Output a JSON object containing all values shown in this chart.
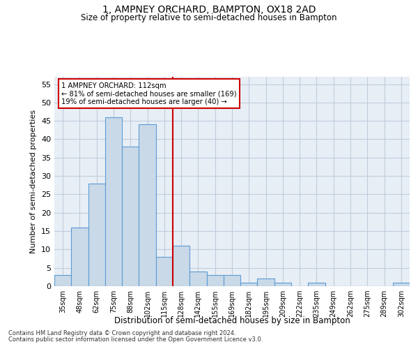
{
  "title": "1, AMPNEY ORCHARD, BAMPTON, OX18 2AD",
  "subtitle": "Size of property relative to semi-detached houses in Bampton",
  "xlabel": "Distribution of semi-detached houses by size in Bampton",
  "ylabel": "Number of semi-detached properties",
  "bin_labels": [
    "35sqm",
    "48sqm",
    "62sqm",
    "75sqm",
    "88sqm",
    "102sqm",
    "115sqm",
    "128sqm",
    "142sqm",
    "155sqm",
    "169sqm",
    "182sqm",
    "195sqm",
    "209sqm",
    "222sqm",
    "235sqm",
    "249sqm",
    "262sqm",
    "275sqm",
    "289sqm",
    "302sqm"
  ],
  "bar_heights": [
    3,
    16,
    28,
    46,
    38,
    44,
    8,
    11,
    4,
    3,
    3,
    1,
    2,
    1,
    0,
    1,
    0,
    0,
    0,
    0,
    1
  ],
  "bar_color": "#c9d9e8",
  "bar_edge_color": "#5b9bd5",
  "vline_x": 6.5,
  "vline_color": "#cc0000",
  "annotation_text": "1 AMPNEY ORCHARD: 112sqm\n← 81% of semi-detached houses are smaller (169)\n19% of semi-detached houses are larger (40) →",
  "annotation_box_color": "#ffffff",
  "annotation_box_edge": "#cc0000",
  "ylim": [
    0,
    57
  ],
  "yticks": [
    0,
    5,
    10,
    15,
    20,
    25,
    30,
    35,
    40,
    45,
    50,
    55
  ],
  "grid_color": "#c0ccdd",
  "background_color": "#e8eef5",
  "footer_line1": "Contains HM Land Registry data © Crown copyright and database right 2024.",
  "footer_line2": "Contains public sector information licensed under the Open Government Licence v3.0."
}
